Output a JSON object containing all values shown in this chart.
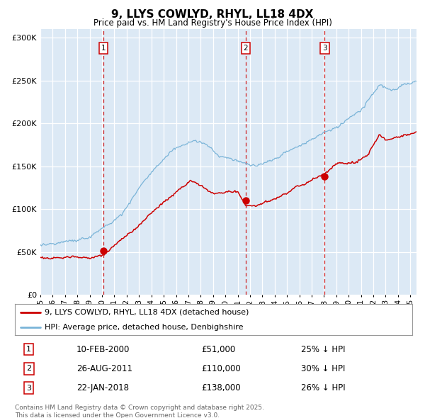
{
  "title": "9, LLYS COWLYD, RHYL, LL18 4DX",
  "subtitle": "Price paid vs. HM Land Registry's House Price Index (HPI)",
  "background_color": "#dce9f5",
  "ylim": [
    0,
    310000
  ],
  "yticks": [
    0,
    50000,
    100000,
    150000,
    200000,
    250000,
    300000
  ],
  "ytick_labels": [
    "£0",
    "£50K",
    "£100K",
    "£150K",
    "£200K",
    "£250K",
    "£300K"
  ],
  "legend_line1": "9, LLYS COWLYD, RHYL, LL18 4DX (detached house)",
  "legend_line2": "HPI: Average price, detached house, Denbighshire",
  "sale1_date": "10-FEB-2000",
  "sale1_price": "£51,000",
  "sale1_hpi": "25% ↓ HPI",
  "sale1_year": 2000.11,
  "sale1_value": 51000,
  "sale2_date": "26-AUG-2011",
  "sale2_price": "£110,000",
  "sale2_hpi": "30% ↓ HPI",
  "sale2_year": 2011.65,
  "sale2_value": 110000,
  "sale3_date": "22-JAN-2018",
  "sale3_price": "£138,000",
  "sale3_hpi": "26% ↓ HPI",
  "sale3_year": 2018.06,
  "sale3_value": 138000,
  "footer": "Contains HM Land Registry data © Crown copyright and database right 2025.\nThis data is licensed under the Open Government Licence v3.0.",
  "hpi_color": "#7ab4d8",
  "price_color": "#cc0000",
  "marker_color": "#cc0000",
  "vline_color": "#cc0000",
  "xlim_start": 1995,
  "xlim_end": 2025.5,
  "xticks": [
    1995,
    1996,
    1997,
    1998,
    1999,
    2000,
    2001,
    2002,
    2003,
    2004,
    2005,
    2006,
    2007,
    2008,
    2009,
    2010,
    2011,
    2012,
    2013,
    2014,
    2015,
    2016,
    2017,
    2018,
    2019,
    2020,
    2021,
    2022,
    2023,
    2024,
    2025
  ],
  "xtick_labels": [
    "95",
    "96",
    "97",
    "98",
    "99",
    "00",
    "01",
    "02",
    "03",
    "04",
    "05",
    "06",
    "07",
    "08",
    "09",
    "10",
    "11",
    "12",
    "13",
    "14",
    "15",
    "16",
    "17",
    "18",
    "19",
    "20",
    "21",
    "22",
    "23",
    "24",
    "25"
  ]
}
